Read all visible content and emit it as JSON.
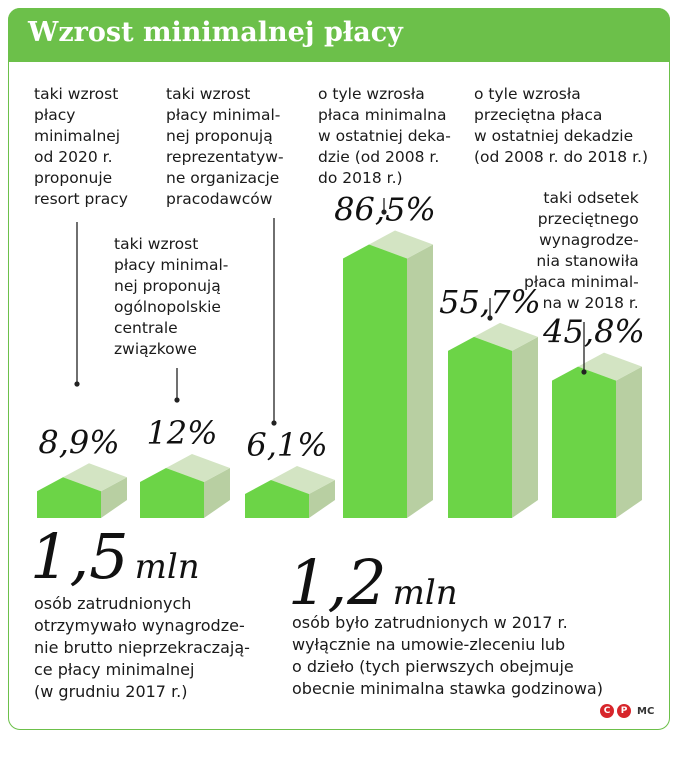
{
  "header": {
    "title": "Wzrost minimalnej płacy"
  },
  "chart_data": {
    "type": "bar",
    "title": "Wzrost minimalnej płacy",
    "series": [
      {
        "value": 8.9,
        "label": "8,9%",
        "description": "taki wzrost\npłacy\nminimalnej\nod 2020 r.\nproponuje\nresort pracy"
      },
      {
        "value": 12,
        "label": "12%",
        "description": "taki wzrost\npłacy minimal-\nnej proponują\nogólnopolskie\ncentrale\nzwiązkowe"
      },
      {
        "value": 6.1,
        "label": "6,1%",
        "description": "taki wzrost\npłacy minimal-\nnej proponują\nreprezentatyw-\nne organizacje\npracodawców"
      },
      {
        "value": 86.5,
        "label": "86,5%",
        "description": "o tyle wzrosła\npłaca minimalna\nw ostatniej deka-\ndzie (od 2008 r.\ndo 2018 r.)"
      },
      {
        "value": 55.7,
        "label": "55,7%",
        "description": "o tyle wzrosła\nprzeciętna płaca\nw ostatniej dekadzie\n(od 2008 r. do 2018 r.)"
      },
      {
        "value": 45.8,
        "label": "45,8%",
        "description": "taki odsetek\nprzeciętnego\nwynagrodze-\nnia stanowiła\npłaca minimal-\nna w 2018 r."
      }
    ]
  },
  "facts": [
    {
      "number": "1,5",
      "unit": "mln",
      "text": "osób zatrudnionych\notrzymywało wynagrodze-\nnie brutto nieprzekraczają-\nce płacy minimalnej\n(w grudniu 2017 r.)"
    },
    {
      "number": "1,2",
      "unit": "mln",
      "text": "osób było zatrudnionych w 2017 r.\nwyłącznie na umowie-zleceniu lub\no dzieło (tych pierwszych obejmuje\nobecnie minimalna stawka godzinowa)"
    }
  ],
  "credits": {
    "c_symbol": "C",
    "p_symbol": "P",
    "author": "MC"
  },
  "colors": {
    "accent": "#6cc04a",
    "bar_front": "#6cd447",
    "bar_side": "#b8cfa2",
    "bar_top": "#d3e4c3"
  }
}
